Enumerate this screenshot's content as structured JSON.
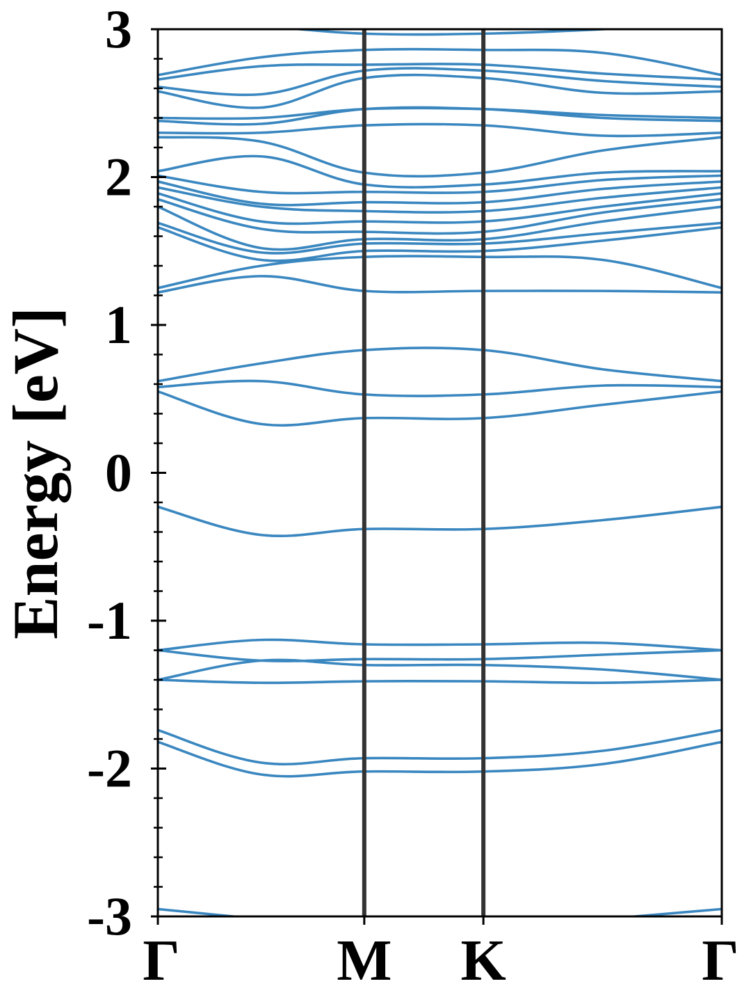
{
  "chart_data": {
    "type": "line",
    "xlabel": "",
    "ylabel": "Energy [eV]",
    "ylim": [
      -3,
      3
    ],
    "yticks": [
      "-3",
      "-2",
      "-1",
      "0",
      "1",
      "2",
      "3"
    ],
    "high_symmetry_points": [
      {
        "label": "Γ",
        "x": 0.0
      },
      {
        "label": "M",
        "x": 1.0
      },
      {
        "label": "K",
        "x": 1.577
      },
      {
        "label": "Γ",
        "x": 2.732
      }
    ],
    "band_color": "#3a87c0",
    "vline_color": "#333333",
    "grid": false,
    "bands": [
      {
        "values": [
          -2.95,
          -3.02,
          -3.1,
          -3.1,
          -3.02,
          -2.95
        ]
      },
      {
        "values": [
          -1.82,
          -2.04,
          -2.02,
          -2.02,
          -1.97,
          -1.82
        ]
      },
      {
        "values": [
          -1.74,
          -1.96,
          -1.93,
          -1.93,
          -1.88,
          -1.74
        ]
      },
      {
        "values": [
          -1.4,
          -1.42,
          -1.41,
          -1.41,
          -1.42,
          -1.4
        ]
      },
      {
        "values": [
          -1.4,
          -1.27,
          -1.3,
          -1.3,
          -1.33,
          -1.4
        ]
      },
      {
        "values": [
          -1.2,
          -1.27,
          -1.26,
          -1.26,
          -1.23,
          -1.2
        ]
      },
      {
        "values": [
          -1.2,
          -1.13,
          -1.16,
          -1.16,
          -1.15,
          -1.2
        ]
      },
      {
        "values": [
          -0.23,
          -0.42,
          -0.38,
          -0.38,
          -0.32,
          -0.23
        ]
      },
      {
        "values": [
          0.55,
          0.33,
          0.37,
          0.37,
          0.46,
          0.55
        ]
      },
      {
        "values": [
          0.58,
          0.62,
          0.53,
          0.53,
          0.59,
          0.58
        ]
      },
      {
        "values": [
          0.62,
          0.74,
          0.83,
          0.83,
          0.7,
          0.62
        ]
      },
      {
        "values": [
          1.22,
          1.33,
          1.23,
          1.23,
          1.23,
          1.22
        ]
      },
      {
        "values": [
          1.25,
          1.4,
          1.46,
          1.46,
          1.44,
          1.25
        ]
      },
      {
        "values": [
          1.66,
          1.44,
          1.5,
          1.5,
          1.57,
          1.66
        ]
      },
      {
        "values": [
          1.69,
          1.49,
          1.55,
          1.55,
          1.62,
          1.69
        ]
      },
      {
        "values": [
          1.8,
          1.52,
          1.58,
          1.58,
          1.7,
          1.8
        ]
      },
      {
        "values": [
          1.85,
          1.65,
          1.63,
          1.63,
          1.76,
          1.85
        ]
      },
      {
        "values": [
          1.89,
          1.7,
          1.7,
          1.7,
          1.8,
          1.89
        ]
      },
      {
        "values": [
          1.93,
          1.8,
          1.77,
          1.77,
          1.86,
          1.93
        ]
      },
      {
        "values": [
          1.97,
          1.82,
          1.83,
          1.83,
          1.92,
          1.97
        ]
      },
      {
        "values": [
          2.01,
          1.9,
          1.9,
          1.9,
          1.98,
          2.01
        ]
      },
      {
        "values": [
          2.04,
          2.14,
          1.95,
          1.95,
          2.03,
          2.04
        ]
      },
      {
        "values": [
          2.27,
          2.24,
          2.03,
          2.03,
          2.18,
          2.27
        ]
      },
      {
        "values": [
          2.3,
          2.3,
          2.35,
          2.35,
          2.28,
          2.3
        ]
      },
      {
        "values": [
          2.38,
          2.36,
          2.46,
          2.46,
          2.4,
          2.38
        ]
      },
      {
        "values": [
          2.4,
          2.4,
          2.46,
          2.46,
          2.42,
          2.4
        ]
      },
      {
        "values": [
          2.58,
          2.47,
          2.67,
          2.67,
          2.57,
          2.58
        ]
      },
      {
        "values": [
          2.61,
          2.56,
          2.72,
          2.72,
          2.65,
          2.61
        ]
      },
      {
        "values": [
          2.66,
          2.75,
          2.76,
          2.76,
          2.7,
          2.66
        ]
      },
      {
        "values": [
          2.69,
          2.81,
          2.86,
          2.86,
          2.84,
          2.69
        ]
      },
      {
        "values": [
          3.05,
          3.02,
          2.97,
          2.97,
          3.0,
          3.05
        ]
      }
    ]
  }
}
